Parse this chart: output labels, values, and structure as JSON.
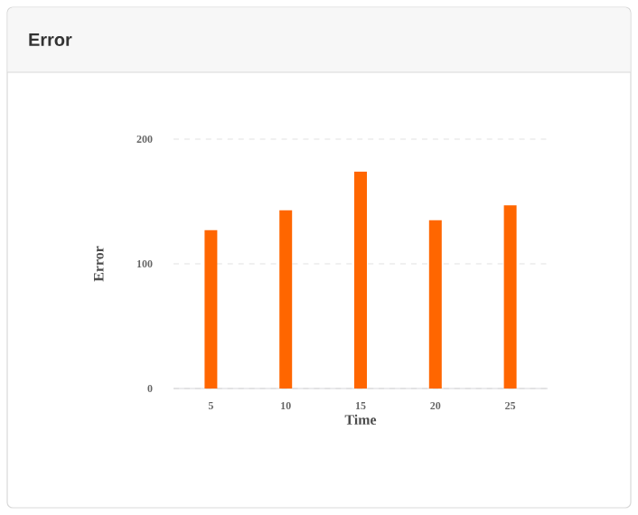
{
  "chart_data": {
    "type": "bar",
    "title": "Error",
    "xlabel": "Time",
    "ylabel": "Error",
    "categories": [
      "5",
      "10",
      "15",
      "20",
      "25"
    ],
    "values": [
      127,
      143,
      174,
      135,
      147
    ],
    "color": "#ff6600",
    "ylim": [
      0,
      200
    ],
    "yticks": [
      0,
      100,
      200
    ],
    "grid": "y"
  }
}
